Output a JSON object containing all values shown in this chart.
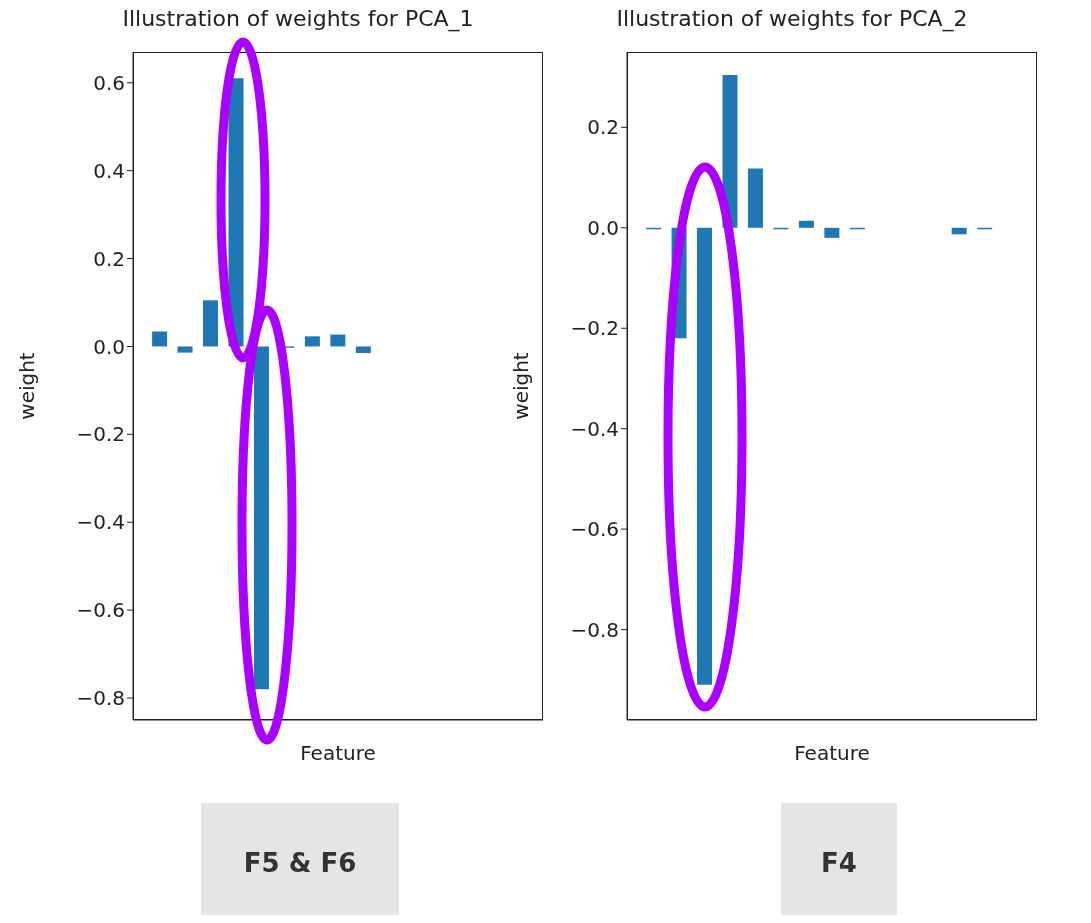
{
  "chart_data": [
    {
      "type": "bar",
      "title": "Illustration of weights for PCA_1",
      "xlabel": "Feature",
      "ylabel": "weight",
      "categories": [
        null,
        null,
        null,
        null,
        null,
        null,
        null,
        null,
        null,
        null,
        null,
        null,
        null,
        null,
        null
      ],
      "values": [
        0.034,
        -0.014,
        0.105,
        0.61,
        -0.78,
        -0.003,
        0.023,
        0.027,
        -0.015,
        null,
        null,
        null,
        null,
        null,
        null
      ],
      "color": "#1f77b4",
      "ylim": [
        -0.85,
        0.67
      ],
      "yticks": [
        {
          "value": -0.8,
          "label": "−0.8"
        },
        {
          "value": -0.6,
          "label": "−0.6"
        },
        {
          "value": -0.4,
          "label": "−0.4"
        },
        {
          "value": -0.2,
          "label": "−0.2"
        },
        {
          "value": 0,
          "label": "0.0"
        },
        {
          "value": 0.2,
          "label": "0.2"
        },
        {
          "value": 0.4,
          "label": "0.4"
        },
        {
          "value": 0.6,
          "label": "0.6"
        }
      ],
      "tick_labels": "y",
      "grid": false,
      "legend": false,
      "annotations": [
        "F5 & F6"
      ]
    },
    {
      "type": "bar",
      "title": "Illustration of weights for PCA_2",
      "xlabel": "Feature",
      "ylabel": "weight",
      "categories": [
        null,
        null,
        null,
        null,
        null,
        null,
        null,
        null,
        null,
        null,
        null,
        null,
        null,
        null,
        null
      ],
      "values": [
        -0.003,
        -0.22,
        -0.91,
        0.304,
        0.118,
        -0.003,
        0.014,
        -0.02,
        -0.003,
        null,
        null,
        null,
        -0.013,
        -0.003,
        null
      ],
      "color": "#1f77b4",
      "ylim": [
        -0.98,
        0.35
      ],
      "yticks": [
        {
          "value": -0.8,
          "label": "−0.8"
        },
        {
          "value": -0.6,
          "label": "−0.6"
        },
        {
          "value": -0.4,
          "label": "−0.4"
        },
        {
          "value": -0.2,
          "label": "−0.2"
        },
        {
          "value": 0,
          "label": "0.0"
        },
        {
          "value": 0.2,
          "label": "0.2"
        }
      ],
      "tick_labels": "y",
      "grid": false,
      "legend": false,
      "annotations": [
        "F4"
      ]
    }
  ]
}
